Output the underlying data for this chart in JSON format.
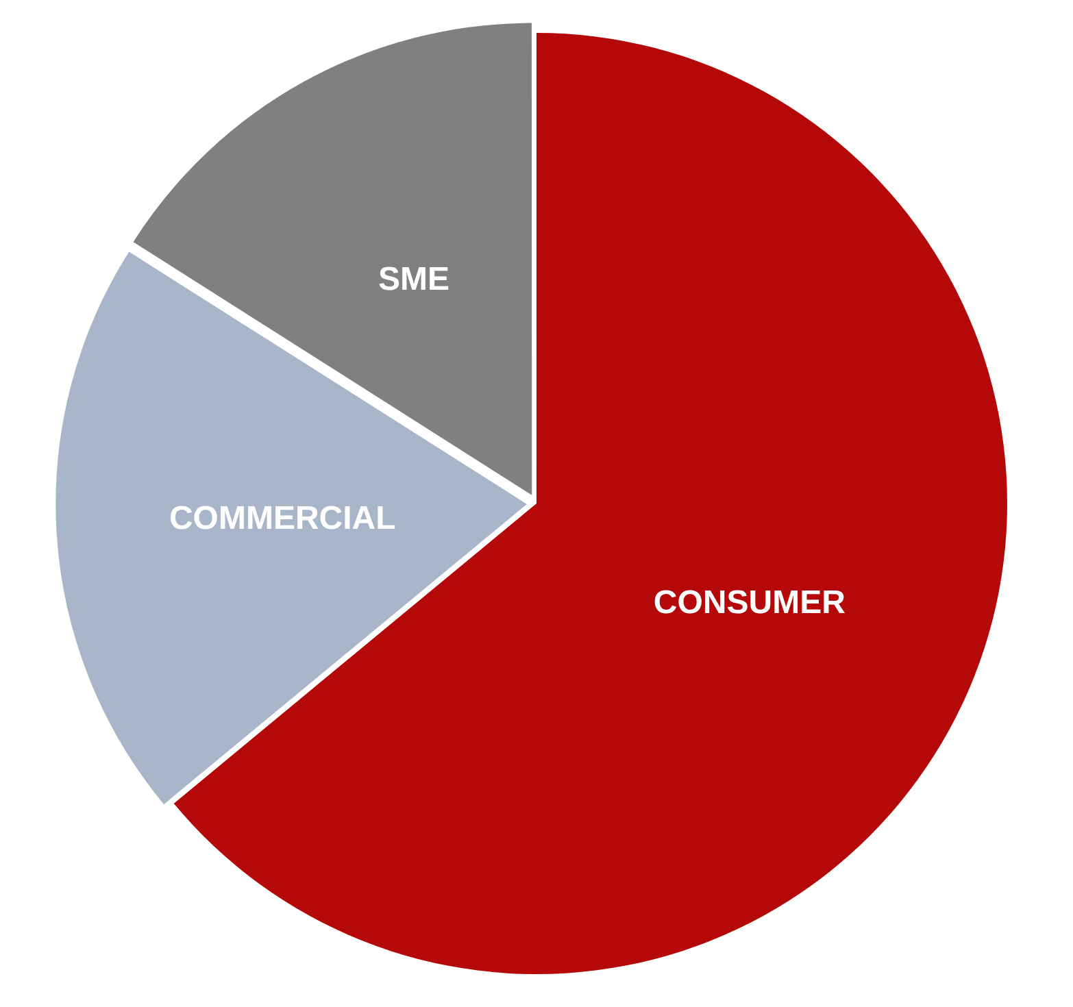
{
  "chart_data": {
    "type": "pie",
    "categories": [
      "CONSUMER",
      "COMMERCIAL",
      "SME"
    ],
    "values": [
      64,
      20,
      16
    ],
    "colors": [
      "#b50808",
      "#a9b6c9",
      "#808080"
    ],
    "legend": false
  }
}
